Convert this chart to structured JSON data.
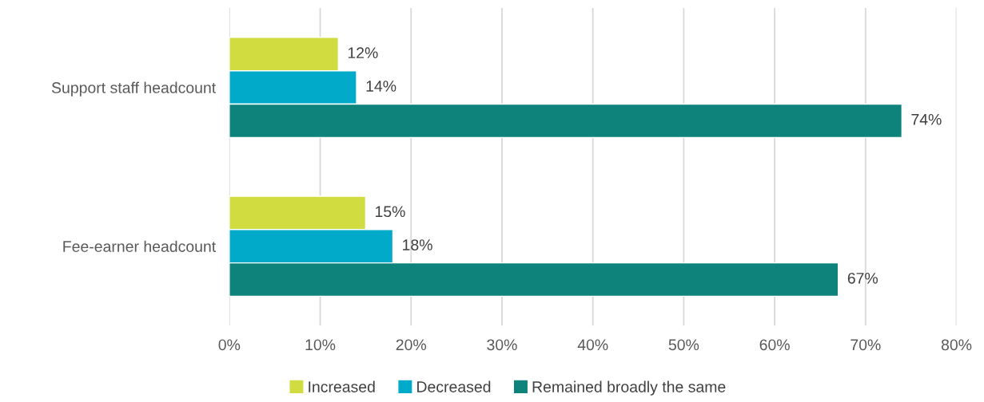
{
  "chart_data": {
    "type": "bar",
    "orientation": "horizontal",
    "categories": [
      "Support staff headcount",
      "Fee-earner headcount"
    ],
    "series": [
      {
        "name": "Increased",
        "color": "#d0dc3f",
        "values": [
          12,
          15
        ],
        "value_labels": [
          "12%",
          "15%"
        ]
      },
      {
        "name": "Decreased",
        "color": "#00aac8",
        "values": [
          14,
          18
        ],
        "value_labels": [
          "14%",
          "18%"
        ]
      },
      {
        "name": "Remained broadly the same",
        "color": "#0e837b",
        "values": [
          74,
          67
        ],
        "value_labels": [
          "74%",
          "67%"
        ]
      }
    ],
    "xlim": [
      0,
      80
    ],
    "xticks": [
      {
        "value": 0,
        "label": "0%"
      },
      {
        "value": 10,
        "label": "10%"
      },
      {
        "value": 20,
        "label": "20%"
      },
      {
        "value": 30,
        "label": "30%"
      },
      {
        "value": 40,
        "label": "40%"
      },
      {
        "value": 50,
        "label": "50%"
      },
      {
        "value": 60,
        "label": "60%"
      },
      {
        "value": 70,
        "label": "70%"
      },
      {
        "value": 80,
        "label": "80%"
      }
    ],
    "grid": "x",
    "legend": "bottom"
  }
}
